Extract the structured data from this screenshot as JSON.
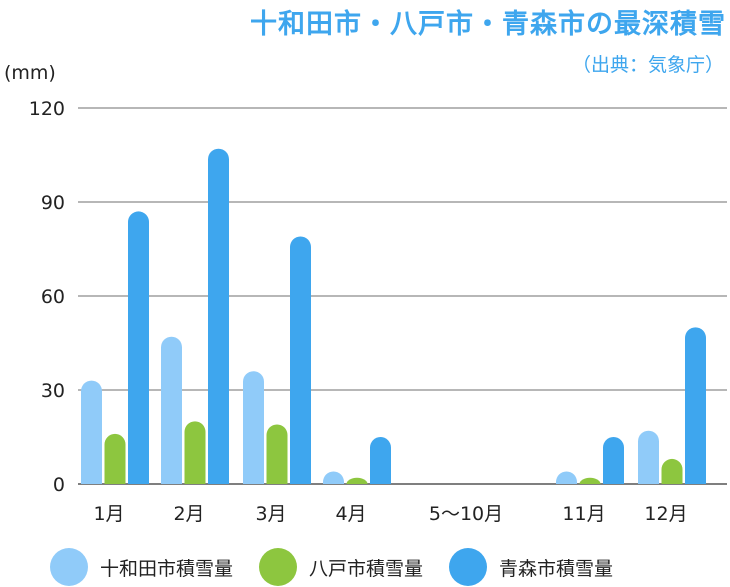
{
  "chart_data": {
    "type": "bar",
    "title": "十和田市・八戸市・青森市の最深積雪",
    "subtitle": "（出典：気象庁）",
    "ylabel": "(mm)",
    "xlabel": "",
    "ylim": [
      0,
      120
    ],
    "yticks": [
      0,
      30,
      60,
      90,
      120
    ],
    "grid": true,
    "legend_position": "bottom",
    "categories": [
      "1月",
      "2月",
      "3月",
      "4月",
      "5〜10月",
      "11月",
      "12月"
    ],
    "series": [
      {
        "name": "十和田市積雪量",
        "color": "#90cbf9",
        "values": [
          33,
          47,
          36,
          4,
          null,
          4,
          17
        ]
      },
      {
        "name": "八戸市積雪量",
        "color": "#8dc63f",
        "values": [
          16,
          20,
          19,
          2,
          null,
          2,
          8
        ]
      },
      {
        "name": "青森市積雪量",
        "color": "#3ea6ee",
        "values": [
          87,
          107,
          79,
          15,
          null,
          15,
          50
        ]
      }
    ]
  }
}
